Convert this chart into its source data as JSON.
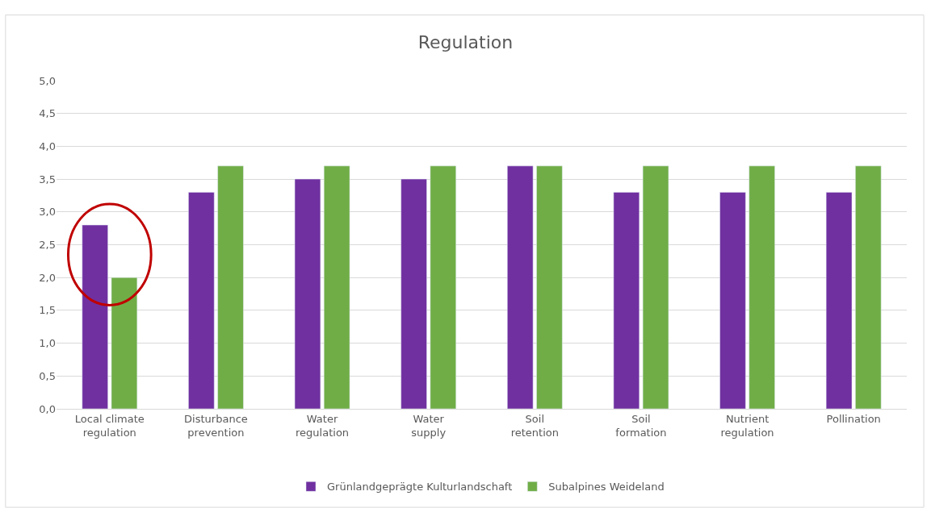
{
  "chart_data": {
    "type": "bar",
    "title": "Regulation",
    "categories": [
      "Local climate regulation",
      "Disturbance prevention",
      "Water regulation",
      "Water supply",
      "Soil retention",
      "Soil formation",
      "Nutrient regulation",
      "Pollination"
    ],
    "series": [
      {
        "name": "Grünlandgeprägte Kulturlandschaft",
        "color": "#7030a0",
        "values": [
          2.8,
          3.3,
          3.5,
          3.5,
          3.7,
          3.3,
          3.3,
          3.3
        ]
      },
      {
        "name": "Subalpines Weideland",
        "color": "#70ad47",
        "values": [
          2.0,
          3.7,
          3.7,
          3.7,
          3.7,
          3.7,
          3.7,
          3.7
        ]
      }
    ],
    "ylim": [
      0,
      5
    ],
    "yticks": [
      {
        "value": 0,
        "label": "0,0"
      },
      {
        "value": 0.5,
        "label": "0,5"
      },
      {
        "value": 1,
        "label": "1,0"
      },
      {
        "value": 1.5,
        "label": "1,5"
      },
      {
        "value": 2,
        "label": "2,0"
      },
      {
        "value": 2.5,
        "label": "2,5"
      },
      {
        "value": 3,
        "label": "3,0"
      },
      {
        "value": 3.5,
        "label": "3,5"
      },
      {
        "value": 4,
        "label": "4,0"
      },
      {
        "value": 4.5,
        "label": "4,5"
      },
      {
        "value": 5,
        "label": "5,0"
      }
    ],
    "grid": "y",
    "legend": "bottom"
  }
}
